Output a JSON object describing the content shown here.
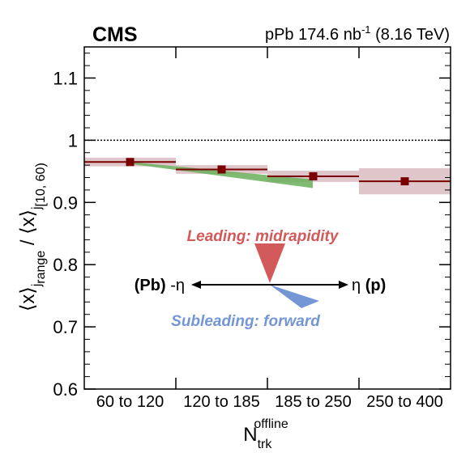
{
  "header": {
    "experiment": "CMS",
    "system": "pPb 174.6 nb",
    "lumi_exponent": "-1",
    "energy": "(8.16 TeV)"
  },
  "chart_data": {
    "type": "scatter",
    "categories": [
      "60 to 120",
      "120 to 185",
      "185 to 250",
      "250 to 400"
    ],
    "values": [
      0.965,
      0.953,
      0.942,
      0.934
    ],
    "syst_band": [
      {
        "low": 0.958,
        "high": 0.972
      },
      {
        "low": 0.946,
        "high": 0.96
      },
      {
        "low": 0.933,
        "high": 0.951
      },
      {
        "low": 0.913,
        "high": 0.955
      }
    ],
    "model_band": {
      "color": "#6aaf5c",
      "points": [
        {
          "x": 0,
          "low": 0.962,
          "high": 0.965
        },
        {
          "x": 3,
          "low": 0.923,
          "high": 0.937
        }
      ]
    },
    "reference_line": 1.0,
    "ylim": [
      0.6,
      1.15
    ],
    "yticks": [
      "0.6",
      "0.7",
      "0.8",
      "0.9",
      "1",
      "1.1"
    ],
    "xlabel": {
      "main": "N",
      "sup": "offline",
      "sub": "trk"
    },
    "ylabel": {
      "num": "⟨x⟩",
      "num_sub": "j",
      "num_subsub": "range",
      "sep": " / ",
      "den": "⟨x⟩",
      "den_sub": "j",
      "den_subsub": "[10, 60)"
    },
    "colors": {
      "marker": "#7a0000",
      "band": "#c9a0a6",
      "leading": "#d25a5a",
      "subleading": "#7596d4"
    }
  },
  "annotations": {
    "leading": "Leading: midrapidity",
    "subleading": "Subleading: forward",
    "left_dir_bold": "(Pb)",
    "left_dir_eta": "-η",
    "right_dir_eta": "η",
    "right_dir_bold": "(p)"
  }
}
